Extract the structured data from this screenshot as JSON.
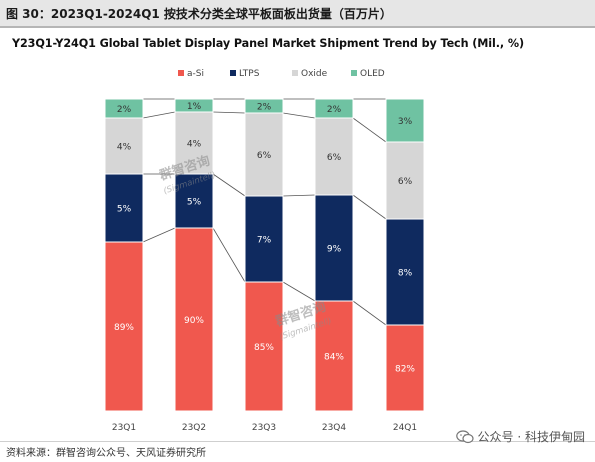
{
  "header": {
    "figure_label": "图 30：2023Q1-2024Q1 按技术分类全球平板面板出货量（百万片）"
  },
  "chart_data": {
    "type": "bar",
    "stacked": true,
    "title": "Y23Q1-Y24Q1 Global Tablet Display Panel Market Shipment Trend by Tech (Mil., %)",
    "categories": [
      "23Q1",
      "23Q2",
      "23Q3",
      "23Q4",
      "24Q1"
    ],
    "series": [
      {
        "name": "a-Si",
        "color": "#f0584e",
        "values": [
          89,
          90,
          85,
          84,
          82
        ],
        "labels": [
          "89%",
          "90%",
          "85%",
          "84%",
          "82%"
        ]
      },
      {
        "name": "LTPS",
        "color": "#0f2a5f",
        "values": [
          5,
          5,
          7,
          9,
          8
        ],
        "labels": [
          "5%",
          "5%",
          "7%",
          "9%",
          "8%"
        ]
      },
      {
        "name": "Oxide",
        "color": "#d6d6d6",
        "values": [
          4,
          4,
          6,
          6,
          6
        ],
        "labels": [
          "4%",
          "4%",
          "6%",
          "6%",
          "6%"
        ]
      },
      {
        "name": "OLED",
        "color": "#6fc2a2",
        "values": [
          2,
          1,
          2,
          2,
          3
        ],
        "labels": [
          "2%",
          "1%",
          "2%",
          "2%",
          "3%"
        ]
      }
    ],
    "legend_position": "top",
    "grid": false,
    "connector_lines": true
  },
  "watermark": {
    "text_cn": "群智咨询",
    "text_en": "(Sigmaintell)"
  },
  "footer": {
    "source": "资料来源：群智咨询公众号、天风证券研究所",
    "wechat": "公众号 · 科技伊甸园"
  }
}
